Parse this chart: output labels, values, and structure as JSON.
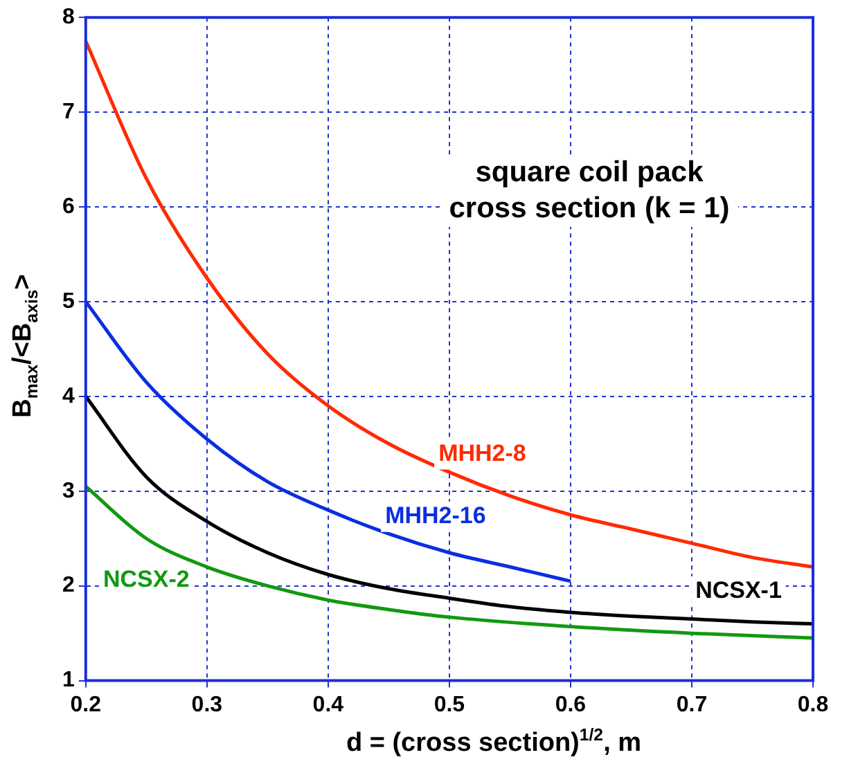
{
  "chart_data": {
    "type": "line",
    "xlabel": "d = (cross section)$^{1/2}$, m",
    "ylabel": "B$_{max}$/<B$_{axis}$>",
    "annotations": [
      "square coil pack cross section (k = 1)"
    ],
    "xlim": [
      0.2,
      0.8
    ],
    "xticks": [
      0.2,
      0.3,
      0.4,
      0.5,
      0.6,
      0.7,
      0.8
    ],
    "ylim": [
      1,
      8
    ],
    "yticks": [
      1,
      2,
      3,
      4,
      5,
      6,
      7,
      8
    ],
    "grid": true,
    "legend": false,
    "marker": "none",
    "line_style": "solid",
    "series": [
      {
        "name": "MHH2-8",
        "color": "#ff2a00",
        "x": [
          0.2,
          0.25,
          0.3,
          0.35,
          0.4,
          0.45,
          0.5,
          0.55,
          0.6,
          0.65,
          0.7,
          0.75,
          0.8
        ],
        "values": [
          7.75,
          6.3,
          5.25,
          4.45,
          3.9,
          3.5,
          3.2,
          2.95,
          2.75,
          2.6,
          2.45,
          2.3,
          2.2
        ]
      },
      {
        "name": "MHH2-16",
        "color": "#0a2ee0",
        "x": [
          0.2,
          0.25,
          0.3,
          0.35,
          0.4,
          0.45,
          0.5,
          0.55,
          0.6
        ],
        "values": [
          5.0,
          4.15,
          3.55,
          3.1,
          2.8,
          2.55,
          2.35,
          2.2,
          2.05
        ]
      },
      {
        "name": "NCSX-1",
        "color": "#000000",
        "x": [
          0.2,
          0.25,
          0.3,
          0.35,
          0.4,
          0.45,
          0.5,
          0.55,
          0.6,
          0.65,
          0.7,
          0.75,
          0.8
        ],
        "values": [
          4.0,
          3.15,
          2.68,
          2.35,
          2.12,
          1.97,
          1.87,
          1.78,
          1.72,
          1.68,
          1.65,
          1.62,
          1.6
        ]
      },
      {
        "name": "NCSX-2",
        "color": "#119911",
        "x": [
          0.2,
          0.25,
          0.3,
          0.35,
          0.4,
          0.45,
          0.5,
          0.6,
          0.7,
          0.8
        ],
        "values": [
          3.05,
          2.5,
          2.2,
          2.0,
          1.85,
          1.75,
          1.67,
          1.57,
          1.5,
          1.45
        ]
      }
    ]
  }
}
